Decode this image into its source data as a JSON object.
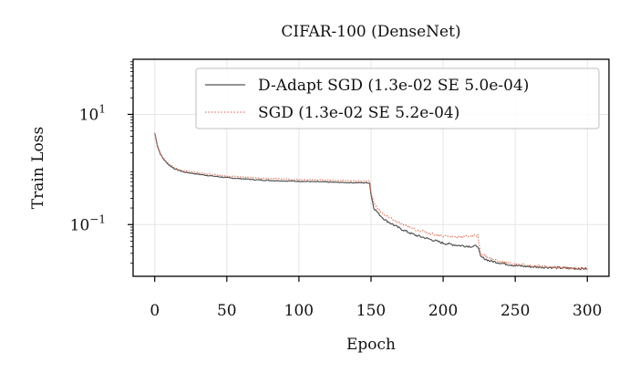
{
  "chart_data": {
    "type": "line",
    "title": "CIFAR-100 (DenseNet)",
    "xlabel": "Epoch",
    "ylabel": "Train Loss",
    "xlim": [
      -15,
      315
    ],
    "xticks": [
      0,
      50,
      100,
      150,
      200,
      250,
      300
    ],
    "ylog": true,
    "ylim": [
      0.0115,
      100
    ],
    "yticks": [
      {
        "value": 10,
        "base": "10",
        "exp": "1"
      },
      {
        "value": 0.1,
        "base": "10",
        "exp": "−1"
      }
    ],
    "grid": true,
    "legend_position": "top-right",
    "series": [
      {
        "name": "D-Adapt SGD (1.3e-02 SE 5.0e-04)",
        "color": "#555555",
        "style": "solid",
        "points": [
          [
            0,
            4.6
          ],
          [
            2,
            2.6
          ],
          [
            4,
            1.9
          ],
          [
            6,
            1.55
          ],
          [
            8,
            1.35
          ],
          [
            10,
            1.2
          ],
          [
            14,
            1.02
          ],
          [
            20,
            0.9
          ],
          [
            30,
            0.82
          ],
          [
            40,
            0.76
          ],
          [
            50,
            0.71
          ],
          [
            60,
            0.68
          ],
          [
            70,
            0.65
          ],
          [
            80,
            0.63
          ],
          [
            90,
            0.62
          ],
          [
            100,
            0.61
          ],
          [
            110,
            0.6
          ],
          [
            120,
            0.59
          ],
          [
            130,
            0.58
          ],
          [
            140,
            0.575
          ],
          [
            149,
            0.57
          ],
          [
            150,
            0.35
          ],
          [
            152,
            0.2
          ],
          [
            156,
            0.15
          ],
          [
            160,
            0.12
          ],
          [
            170,
            0.085
          ],
          [
            180,
            0.065
          ],
          [
            190,
            0.055
          ],
          [
            200,
            0.046
          ],
          [
            210,
            0.042
          ],
          [
            220,
            0.04
          ],
          [
            224,
            0.041
          ],
          [
            226,
            0.026
          ],
          [
            232,
            0.022
          ],
          [
            240,
            0.02
          ],
          [
            250,
            0.018
          ],
          [
            260,
            0.0172
          ],
          [
            270,
            0.0168
          ],
          [
            280,
            0.0164
          ],
          [
            290,
            0.016
          ],
          [
            300,
            0.0158
          ]
        ]
      },
      {
        "name": "SGD (1.3e-02 SE 5.2e-04)",
        "color": "#e07a5f",
        "style": "dotted",
        "points": [
          [
            0,
            4.7
          ],
          [
            2,
            2.7
          ],
          [
            4,
            1.95
          ],
          [
            6,
            1.6
          ],
          [
            8,
            1.4
          ],
          [
            10,
            1.25
          ],
          [
            14,
            1.06
          ],
          [
            20,
            0.95
          ],
          [
            30,
            0.87
          ],
          [
            40,
            0.81
          ],
          [
            50,
            0.76
          ],
          [
            60,
            0.73
          ],
          [
            70,
            0.7
          ],
          [
            80,
            0.68
          ],
          [
            90,
            0.67
          ],
          [
            100,
            0.66
          ],
          [
            110,
            0.65
          ],
          [
            120,
            0.64
          ],
          [
            130,
            0.63
          ],
          [
            140,
            0.62
          ],
          [
            149,
            0.62
          ],
          [
            150,
            0.4
          ],
          [
            152,
            0.24
          ],
          [
            156,
            0.18
          ],
          [
            160,
            0.145
          ],
          [
            170,
            0.105
          ],
          [
            180,
            0.082
          ],
          [
            190,
            0.07
          ],
          [
            200,
            0.062
          ],
          [
            210,
            0.06
          ],
          [
            220,
            0.062
          ],
          [
            224,
            0.064
          ],
          [
            226,
            0.03
          ],
          [
            232,
            0.025
          ],
          [
            240,
            0.021
          ],
          [
            250,
            0.019
          ],
          [
            260,
            0.018
          ],
          [
            270,
            0.0172
          ],
          [
            280,
            0.0167
          ],
          [
            290,
            0.0162
          ],
          [
            300,
            0.016
          ]
        ]
      }
    ]
  }
}
